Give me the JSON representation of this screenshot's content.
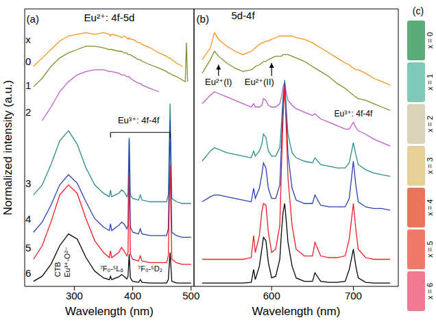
{
  "chart_data": [
    {
      "type": "line",
      "panel": "(a)",
      "x_label": "Wavelength (nm)",
      "y_label": "Normalized intensity (a.u.)",
      "xlim": [
        215,
        505
      ],
      "xticks": [
        300,
        400,
        500
      ],
      "ylim": [
        0,
        8.2
      ],
      "tick_labels": "x",
      "grid": false,
      "x": [
        230,
        245,
        260,
        275,
        290,
        305,
        320,
        335,
        350,
        360,
        362,
        364,
        376,
        381,
        385,
        390,
        392,
        394,
        396,
        400,
        410,
        413,
        416,
        430,
        445,
        458,
        461,
        464,
        467,
        475,
        485,
        490,
        492,
        494,
        500
      ],
      "series": [
        {
          "name": "0",
          "color": "#f7931e",
          "values": [
            6.5,
            6.75,
            7.0,
            7.25,
            7.4,
            7.45,
            7.5,
            7.45,
            7.5,
            7.45,
            7.4,
            7.45,
            7.4,
            7.35,
            7.4,
            7.35,
            7.3,
            7.35,
            7.3,
            7.3,
            7.2,
            7.2,
            7.15,
            7.05,
            6.9,
            6.8,
            6.75,
            6.75,
            6.7,
            6.6,
            6.5,
            null,
            null,
            null,
            null
          ]
        },
        {
          "name": "1",
          "color": "#7f8f2a",
          "values": [
            5.9,
            6.15,
            6.5,
            6.75,
            6.9,
            7.0,
            7.1,
            7.1,
            7.05,
            7.0,
            7.0,
            7.0,
            6.95,
            6.95,
            6.9,
            6.9,
            6.85,
            6.85,
            6.85,
            6.8,
            6.7,
            6.7,
            6.65,
            6.55,
            6.45,
            6.35,
            6.3,
            6.3,
            6.25,
            6.2,
            6.1,
            6.05,
            7.2,
            6.05,
            null
          ]
        },
        {
          "name": "2",
          "color": "#c05ac8",
          "values": [
            null,
            4.9,
            5.3,
            5.75,
            6.05,
            6.25,
            6.35,
            6.4,
            6.4,
            6.35,
            6.35,
            6.35,
            6.3,
            6.25,
            6.25,
            6.2,
            6.2,
            6.2,
            6.15,
            6.1,
            6.0,
            6.0,
            5.95,
            5.85,
            5.75,
            null,
            null,
            null,
            null,
            null,
            null,
            null,
            null,
            null,
            null
          ]
        },
        {
          "name": "3",
          "color": "#2a8c8c",
          "values": [
            2.7,
            3.0,
            3.6,
            4.3,
            4.6,
            4.2,
            3.5,
            3.0,
            2.75,
            2.65,
            2.85,
            2.65,
            2.75,
            2.85,
            2.8,
            2.65,
            2.75,
            4.4,
            2.7,
            2.6,
            2.55,
            2.7,
            2.55,
            2.5,
            2.5,
            2.5,
            2.7,
            5.4,
            2.6,
            2.5,
            2.45,
            2.45,
            2.45,
            2.45,
            2.45
          ]
        },
        {
          "name": "4",
          "color": "#2b3fb5",
          "values": [
            1.6,
            1.9,
            2.4,
            3.0,
            3.3,
            3.05,
            2.5,
            2.0,
            1.75,
            1.65,
            1.85,
            1.65,
            1.8,
            1.9,
            1.85,
            1.7,
            1.8,
            4.35,
            1.75,
            1.6,
            1.55,
            1.7,
            1.55,
            1.5,
            1.5,
            1.5,
            1.7,
            4.9,
            1.6,
            1.5,
            1.45,
            1.45,
            1.45,
            1.45,
            1.45
          ]
        },
        {
          "name": "5",
          "color": "#ee1c25",
          "values": [
            0.8,
            1.2,
            1.9,
            2.7,
            3.0,
            2.75,
            2.0,
            1.35,
            1.0,
            0.85,
            1.05,
            0.85,
            1.0,
            1.15,
            1.05,
            0.9,
            1.0,
            3.35,
            0.95,
            0.8,
            0.75,
            0.9,
            0.75,
            0.7,
            0.7,
            0.7,
            0.9,
            3.6,
            0.8,
            0.7,
            0.65,
            0.65,
            0.65,
            0.65,
            0.65
          ]
        },
        {
          "name": "6",
          "color": "#000000",
          "values": [
            0.15,
            0.3,
            0.65,
            1.2,
            1.55,
            1.4,
            0.85,
            0.45,
            0.25,
            0.2,
            0.3,
            0.2,
            0.28,
            0.35,
            0.3,
            0.22,
            0.3,
            0.95,
            0.25,
            0.15,
            0.12,
            0.2,
            0.12,
            0.1,
            0.1,
            0.1,
            0.2,
            1.0,
            0.15,
            0.1,
            0.1,
            0.1,
            0.1,
            0.1,
            0.1
          ]
        }
      ],
      "annotations": {
        "band": "Eu²⁺: 4f-5d",
        "series_head": "x",
        "lines": "Eu³⁺: 4f-4f",
        "ctb": "CTB",
        "ctb_pair": "Eu³⁺-O²⁻",
        "line_l6": "⁷F₀-⁵L₆",
        "line_d2": "⁷F₀-⁵D₂"
      }
    },
    {
      "type": "line",
      "panel": "(b)",
      "x_label": "Wavelength (nm)",
      "xlim": [
        505,
        755
      ],
      "xticks": [
        600,
        700
      ],
      "ylim": [
        0,
        8.2
      ],
      "tick_labels": "x",
      "grid": false,
      "x": [
        515,
        525,
        530,
        535,
        545,
        555,
        565,
        575,
        578,
        580,
        585,
        588,
        590,
        593,
        596,
        600,
        605,
        610,
        612,
        614,
        616,
        618,
        620,
        625,
        630,
        640,
        650,
        653,
        660,
        670,
        680,
        690,
        695,
        700,
        703,
        706,
        715,
        725,
        735,
        745
      ],
      "series": [
        {
          "name": "0",
          "color": "#f7931e",
          "values": [
            6.7,
            7.05,
            7.5,
            7.3,
            7.1,
            6.95,
            6.85,
            6.95,
            7.0,
            7.05,
            7.15,
            7.2,
            7.2,
            7.25,
            7.25,
            7.3,
            7.35,
            7.4,
            7.4,
            7.4,
            7.4,
            7.4,
            7.4,
            7.4,
            7.35,
            7.3,
            7.2,
            7.15,
            7.05,
            6.9,
            6.75,
            6.6,
            6.55,
            6.45,
            6.4,
            6.4,
            6.3,
            6.15,
            6.05,
            5.95
          ]
        },
        {
          "name": "1",
          "color": "#7f8f2a",
          "values": [
            6.3,
            6.7,
            6.95,
            6.8,
            6.6,
            6.45,
            6.35,
            6.4,
            6.45,
            6.5,
            6.55,
            6.6,
            6.65,
            6.65,
            6.7,
            6.75,
            6.8,
            6.8,
            6.8,
            6.85,
            6.85,
            6.85,
            6.85,
            6.8,
            6.75,
            6.65,
            6.5,
            6.45,
            6.35,
            6.2,
            6.0,
            5.85,
            5.75,
            5.65,
            5.6,
            5.55,
            5.5,
            5.4,
            5.3,
            5.2
          ]
        },
        {
          "name": "2",
          "color": "#c05ac8",
          "values": [
            5.4,
            5.65,
            5.75,
            5.7,
            5.6,
            5.5,
            5.4,
            5.3,
            5.4,
            5.3,
            5.3,
            5.35,
            5.55,
            5.5,
            5.35,
            5.3,
            5.3,
            5.4,
            5.6,
            5.9,
            6.05,
            5.7,
            5.5,
            5.35,
            5.25,
            5.15,
            5.05,
            5.1,
            4.95,
            4.85,
            4.75,
            4.65,
            4.65,
            4.85,
            4.7,
            4.6,
            4.5,
            4.35,
            4.25,
            4.15
          ]
        },
        {
          "name": "3",
          "color": "#2a8c8c",
          "values": [
            3.7,
            4.0,
            4.1,
            4.05,
            3.95,
            3.9,
            3.85,
            3.8,
            4.0,
            3.85,
            4.0,
            4.2,
            4.5,
            4.4,
            4.0,
            3.85,
            3.85,
            4.1,
            4.8,
            5.6,
            6.1,
            5.2,
            4.5,
            3.95,
            3.8,
            3.7,
            3.65,
            3.8,
            3.6,
            3.55,
            3.5,
            3.5,
            3.65,
            4.25,
            3.9,
            3.6,
            3.45,
            3.35,
            3.3,
            3.25
          ]
        },
        {
          "name": "4",
          "color": "#2b3fb5",
          "values": [
            2.5,
            2.65,
            2.7,
            2.7,
            2.65,
            2.6,
            2.55,
            2.5,
            2.9,
            2.6,
            2.9,
            3.3,
            3.65,
            3.5,
            2.9,
            2.6,
            2.6,
            3.0,
            4.2,
            5.4,
            6.0,
            5.0,
            3.9,
            2.9,
            2.55,
            2.45,
            2.45,
            2.7,
            2.4,
            2.35,
            2.35,
            2.35,
            2.6,
            3.7,
            3.0,
            2.5,
            2.35,
            2.3,
            2.3,
            2.25
          ]
        },
        {
          "name": "5",
          "color": "#ee1c25",
          "values": [
            0.8,
            0.8,
            0.8,
            0.8,
            0.8,
            0.8,
            0.8,
            0.85,
            1.5,
            1.0,
            1.5,
            2.2,
            2.45,
            2.4,
            1.6,
            1.0,
            1.1,
            1.8,
            3.5,
            5.0,
            5.9,
            4.6,
            3.2,
            1.8,
            1.1,
            0.9,
            0.9,
            1.3,
            0.9,
            0.85,
            0.85,
            0.9,
            1.4,
            2.45,
            1.7,
            1.1,
            0.85,
            0.8,
            0.8,
            0.8
          ]
        },
        {
          "name": "6",
          "color": "#000000",
          "values": [
            0.1,
            0.1,
            0.1,
            0.1,
            0.1,
            0.1,
            0.1,
            0.12,
            0.5,
            0.2,
            0.6,
            1.1,
            1.45,
            1.35,
            0.7,
            0.25,
            0.3,
            0.8,
            1.6,
            2.2,
            2.45,
            1.9,
            1.3,
            0.6,
            0.25,
            0.15,
            0.15,
            0.4,
            0.15,
            0.12,
            0.12,
            0.15,
            0.5,
            1.1,
            0.6,
            0.25,
            0.12,
            0.1,
            0.1,
            0.1
          ]
        }
      ],
      "annotations": {
        "band": "5d-4f",
        "peak_1": "Eu²⁺(I)",
        "peak_2": "Eu²⁺(II)",
        "lines": "Eu³⁺: 4f-4f"
      }
    }
  ],
  "photos": {
    "panel": "(c)",
    "swatches": [
      {
        "label": "x = 0",
        "color": "#5dab7a"
      },
      {
        "label": "x = 1",
        "color": "#7fc9b6"
      },
      {
        "label": "x = 2",
        "color": "#d8d3ba"
      },
      {
        "label": "x = 3",
        "color": "#e7cf98"
      },
      {
        "label": "x = 4",
        "color": "#e8775a"
      },
      {
        "label": "x = 5",
        "color": "#f07a6a"
      },
      {
        "label": "x = 6",
        "color": "#f07a92"
      }
    ]
  }
}
